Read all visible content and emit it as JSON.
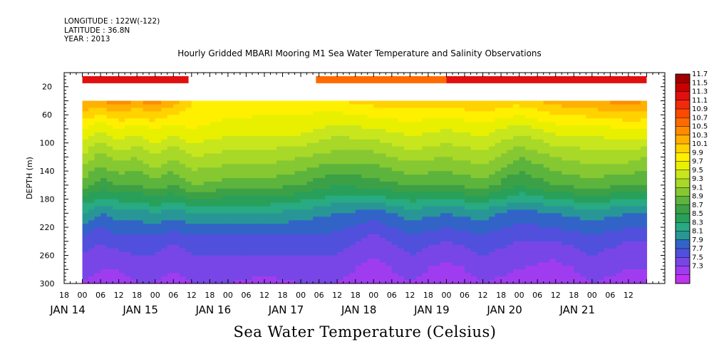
{
  "header": {
    "longitude": "LONGITUDE : 122W(-122)",
    "latitude": "LATITUDE : 36.8N",
    "year": "YEAR : 2013"
  },
  "chart_data": {
    "type": "heatmap",
    "title": "Hourly Gridded MBARI Mooring M1 Sea Water Temperature and Salinity Observations",
    "colorbar_title": "Sea Water Temperature (Celsius)",
    "ylabel": "DEPTH (m)",
    "y_inverted": true,
    "ylim": [
      300,
      0
    ],
    "y_ticks": [
      20,
      60,
      100,
      140,
      180,
      220,
      260,
      300
    ],
    "x_hour_ticks": [
      "18",
      "00",
      "06",
      "12",
      "18",
      "00",
      "06",
      "12",
      "18",
      "00",
      "06",
      "12",
      "18",
      "00",
      "06",
      "12",
      "18",
      "00",
      "06",
      "12",
      "18",
      "00",
      "06",
      "12",
      "18",
      "00",
      "06",
      "12",
      "18",
      "00",
      "06",
      "12"
    ],
    "x_day_labels": [
      "JAN 14",
      "JAN 15",
      "JAN 16",
      "JAN 17",
      "JAN 18",
      "JAN 19",
      "JAN 20",
      "JAN 21"
    ],
    "x_range_hours": [
      -6,
      192
    ],
    "data_start_hours": 0,
    "data_end_hours": 186,
    "depths_m": [
      40,
      80,
      120,
      160,
      200,
      240,
      280,
      300
    ],
    "surface_depth_m": 10,
    "surface_segments": [
      {
        "start_h": 0,
        "end_h": 35,
        "value": 11.4
      },
      {
        "start_h": 77,
        "end_h": 120,
        "value": 10.8
      },
      {
        "start_h": 120,
        "end_h": 186,
        "value": 11.3
      }
    ],
    "profile_times_h": [
      0,
      6,
      12,
      18,
      24,
      30,
      36,
      48,
      60,
      72,
      84,
      96,
      108,
      120,
      132,
      144,
      156,
      168,
      180,
      186
    ],
    "profiles": [
      [
        10.5,
        9.9,
        9.5,
        9.0,
        8.3,
        7.8,
        7.6,
        7.5
      ],
      [
        10.5,
        9.7,
        9.2,
        8.8,
        8.1,
        7.7,
        7.5,
        7.4
      ],
      [
        10.6,
        9.9,
        9.4,
        8.9,
        8.2,
        7.8,
        7.5,
        7.4
      ],
      [
        10.5,
        9.8,
        9.3,
        8.9,
        8.2,
        7.8,
        7.6,
        7.5
      ],
      [
        10.6,
        9.9,
        9.5,
        9.0,
        8.3,
        7.8,
        7.6,
        7.5
      ],
      [
        10.4,
        9.8,
        9.3,
        8.9,
        8.2,
        7.7,
        7.5,
        7.4
      ],
      [
        10.1,
        9.9,
        9.5,
        9.1,
        8.3,
        7.8,
        7.6,
        7.5
      ],
      [
        10.1,
        9.8,
        9.4,
        9.0,
        8.3,
        7.8,
        7.6,
        7.5
      ],
      [
        10.0,
        9.8,
        9.4,
        9.0,
        8.3,
        7.8,
        7.6,
        7.4
      ],
      [
        10.0,
        9.8,
        9.3,
        8.9,
        8.2,
        7.8,
        7.6,
        7.5
      ],
      [
        10.1,
        9.6,
        9.2,
        8.7,
        8.1,
        7.8,
        7.6,
        7.5
      ],
      [
        10.2,
        9.7,
        9.2,
        8.8,
        8.0,
        7.6,
        7.4,
        7.3
      ],
      [
        10.2,
        9.8,
        9.4,
        8.9,
        8.2,
        7.8,
        7.6,
        7.5
      ],
      [
        10.2,
        9.7,
        9.3,
        8.9,
        8.1,
        7.7,
        7.4,
        7.3
      ],
      [
        10.3,
        9.8,
        9.4,
        9.0,
        8.2,
        7.8,
        7.6,
        7.5
      ],
      [
        10.2,
        9.6,
        9.1,
        8.7,
        8.0,
        7.7,
        7.5,
        7.4
      ],
      [
        10.4,
        9.8,
        9.3,
        8.9,
        8.1,
        7.7,
        7.4,
        7.3
      ],
      [
        10.5,
        9.8,
        9.4,
        9.0,
        8.2,
        7.8,
        7.6,
        7.5
      ],
      [
        10.6,
        9.9,
        9.4,
        8.9,
        8.1,
        7.7,
        7.5,
        7.4
      ],
      [
        10.5,
        9.9,
        9.3,
        8.9,
        8.1,
        7.7,
        7.5,
        7.4
      ]
    ],
    "colorbar_levels": [
      "11.7",
      "11.5",
      "11.3",
      "11.1",
      "10.9",
      "10.7",
      "10.5",
      "10.3",
      "10.1",
      "9.9",
      "9.7",
      "9.5",
      "9.3",
      "9.1",
      "8.9",
      "8.7",
      "8.5",
      "8.3",
      "8.1",
      "7.9",
      "7.7",
      "7.5",
      "7.3"
    ],
    "colorbar_colors": [
      "#a00000",
      "#c80000",
      "#e10f0f",
      "#f02a0a",
      "#fa4a00",
      "#ff6a00",
      "#ff8c00",
      "#ffb000",
      "#ffd200",
      "#fff000",
      "#e8f000",
      "#c8e61e",
      "#a8d828",
      "#86c832",
      "#5cb43c",
      "#3ca046",
      "#28a05a",
      "#28aa82",
      "#289696",
      "#3264c8",
      "#5050dc",
      "#7846e6",
      "#a03cf0",
      "#c032f0"
    ]
  }
}
